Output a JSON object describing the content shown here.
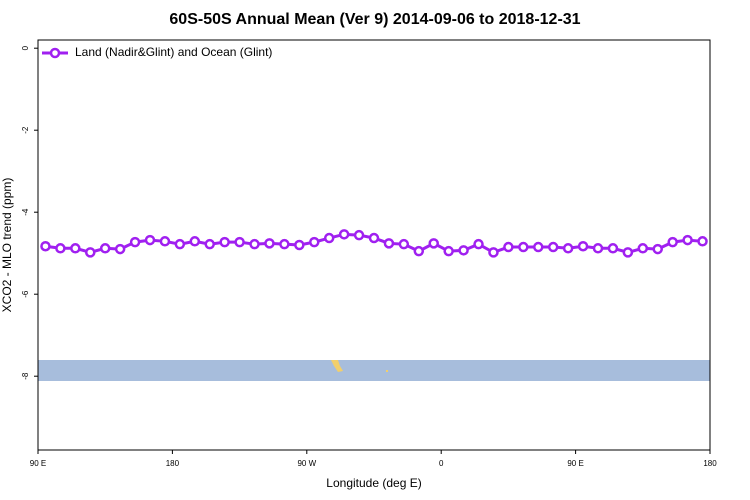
{
  "chart_data": {
    "type": "line",
    "title": "60S-50S Annual Mean (Ver 9)   2014-09-06 to 2018-12-31",
    "xlabel": "Longitude (deg E)",
    "ylabel": "XCO2 - MLO trend (ppm)",
    "x": [
      95,
      105,
      115,
      125,
      135,
      145,
      155,
      165,
      175,
      185,
      195,
      205,
      215,
      225,
      235,
      245,
      255,
      265,
      275,
      285,
      295,
      305,
      315,
      325,
      335,
      345,
      355,
      365,
      375,
      385,
      395,
      405,
      415,
      425,
      435,
      445,
      455,
      465,
      475,
      485,
      495,
      505,
      515,
      525,
      535
    ],
    "series": [
      {
        "name": "Land (Nadir&Glint) and Ocean (Glint)",
        "color": "#a020f0",
        "values": [
          -4.83,
          -4.88,
          -4.88,
          -4.98,
          -4.88,
          -4.9,
          -4.73,
          -4.68,
          -4.71,
          -4.78,
          -4.71,
          -4.78,
          -4.73,
          -4.73,
          -4.78,
          -4.76,
          -4.78,
          -4.8,
          -4.73,
          -4.63,
          -4.54,
          -4.56,
          -4.63,
          -4.76,
          -4.78,
          -4.95,
          -4.76,
          -4.95,
          -4.93,
          -4.78,
          -4.98,
          -4.85,
          -4.85,
          -4.85,
          -4.85,
          -4.88,
          -4.83,
          -4.88,
          -4.88,
          -4.98,
          -4.88,
          -4.9,
          -4.73,
          -4.68,
          -4.71
        ]
      }
    ],
    "xlim": [
      90,
      540
    ],
    "xticks": [
      {
        "value": 90,
        "label": "90 E"
      },
      {
        "value": 180,
        "label": "180"
      },
      {
        "value": 270,
        "label": "90 W"
      },
      {
        "value": 360,
        "label": "0"
      },
      {
        "value": 450,
        "label": "90 E"
      },
      {
        "value": 540,
        "label": "180"
      }
    ],
    "ylim": [
      -9.8,
      0.2
    ],
    "yticks": [
      0,
      -2,
      -4,
      -6,
      -8
    ],
    "legend": "top-left"
  }
}
